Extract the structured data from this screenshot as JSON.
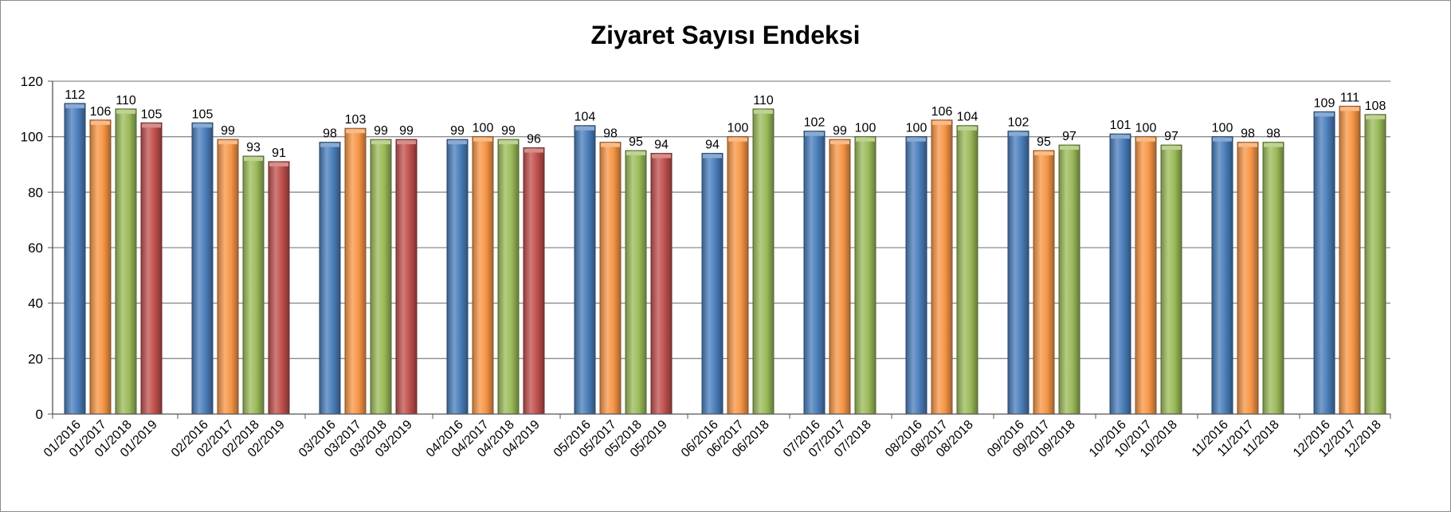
{
  "chart_data": {
    "type": "bar",
    "title": "Ziyaret Sayısı Endeksi",
    "xlabel": "",
    "ylabel": "",
    "ylim": [
      0,
      120
    ],
    "yticks": [
      0,
      20,
      40,
      60,
      80,
      100,
      120
    ],
    "grid": true,
    "legend": "none",
    "year_colors": {
      "2016": "#4a7ebb",
      "2017": "#f79646",
      "2018": "#9bbb59",
      "2019": "#c0504d"
    },
    "groups": [
      {
        "month": "01",
        "bars": [
          {
            "label": "01/2016",
            "year": "2016",
            "value": 112
          },
          {
            "label": "01/2017",
            "year": "2017",
            "value": 106
          },
          {
            "label": "01/2018",
            "year": "2018",
            "value": 110
          },
          {
            "label": "01/2019",
            "year": "2019",
            "value": 105
          }
        ]
      },
      {
        "month": "02",
        "bars": [
          {
            "label": "02/2016",
            "year": "2016",
            "value": 105
          },
          {
            "label": "02/2017",
            "year": "2017",
            "value": 99
          },
          {
            "label": "02/2018",
            "year": "2018",
            "value": 93
          },
          {
            "label": "02/2019",
            "year": "2019",
            "value": 91
          }
        ]
      },
      {
        "month": "03",
        "bars": [
          {
            "label": "03/2016",
            "year": "2016",
            "value": 98
          },
          {
            "label": "03/2017",
            "year": "2017",
            "value": 103
          },
          {
            "label": "03/2018",
            "year": "2018",
            "value": 99
          },
          {
            "label": "03/2019",
            "year": "2019",
            "value": 99
          }
        ]
      },
      {
        "month": "04",
        "bars": [
          {
            "label": "04/2016",
            "year": "2016",
            "value": 99
          },
          {
            "label": "04/2017",
            "year": "2017",
            "value": 100
          },
          {
            "label": "04/2018",
            "year": "2018",
            "value": 99
          },
          {
            "label": "04/2019",
            "year": "2019",
            "value": 96
          }
        ]
      },
      {
        "month": "05",
        "bars": [
          {
            "label": "05/2016",
            "year": "2016",
            "value": 104
          },
          {
            "label": "05/2017",
            "year": "2017",
            "value": 98
          },
          {
            "label": "05/2018",
            "year": "2018",
            "value": 95
          },
          {
            "label": "05/2019",
            "year": "2019",
            "value": 94
          }
        ]
      },
      {
        "month": "06",
        "bars": [
          {
            "label": "06/2016",
            "year": "2016",
            "value": 94
          },
          {
            "label": "06/2017",
            "year": "2017",
            "value": 100
          },
          {
            "label": "06/2018",
            "year": "2018",
            "value": 110
          }
        ]
      },
      {
        "month": "07",
        "bars": [
          {
            "label": "07/2016",
            "year": "2016",
            "value": 102
          },
          {
            "label": "07/2017",
            "year": "2017",
            "value": 99
          },
          {
            "label": "07/2018",
            "year": "2018",
            "value": 100
          }
        ]
      },
      {
        "month": "08",
        "bars": [
          {
            "label": "08/2016",
            "year": "2016",
            "value": 100
          },
          {
            "label": "08/2017",
            "year": "2017",
            "value": 106
          },
          {
            "label": "08/2018",
            "year": "2018",
            "value": 104
          }
        ]
      },
      {
        "month": "09",
        "bars": [
          {
            "label": "09/2016",
            "year": "2016",
            "value": 102
          },
          {
            "label": "09/2017",
            "year": "2017",
            "value": 95
          },
          {
            "label": "09/2018",
            "year": "2018",
            "value": 97
          }
        ]
      },
      {
        "month": "10",
        "bars": [
          {
            "label": "10/2016",
            "year": "2016",
            "value": 101
          },
          {
            "label": "10/2017",
            "year": "2017",
            "value": 100
          },
          {
            "label": "10/2018",
            "year": "2018",
            "value": 97
          }
        ]
      },
      {
        "month": "11",
        "bars": [
          {
            "label": "11/2016",
            "year": "2016",
            "value": 100
          },
          {
            "label": "11/2017",
            "year": "2017",
            "value": 98
          },
          {
            "label": "11/2018",
            "year": "2018",
            "value": 98
          }
        ]
      },
      {
        "month": "12",
        "bars": [
          {
            "label": "12/2016",
            "year": "2016",
            "value": 109
          },
          {
            "label": "12/2017",
            "year": "2017",
            "value": 111
          },
          {
            "label": "12/2018",
            "year": "2018",
            "value": 108
          }
        ]
      }
    ]
  }
}
